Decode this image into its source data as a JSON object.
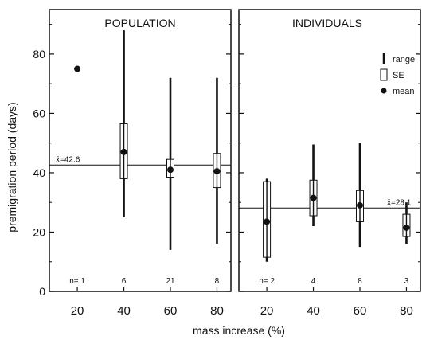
{
  "chart_data": [
    {
      "type": "range-se-mean",
      "title": "POPULATION",
      "xlabel": "mass increase (%)",
      "ylabel": "premigration period (days)",
      "categories": [
        "20",
        "40",
        "60",
        "80"
      ],
      "x": [
        20,
        40,
        60,
        80
      ],
      "xlim": [
        8,
        86
      ],
      "ylim": [
        0,
        95
      ],
      "yticks": [
        0,
        20,
        40,
        60,
        80
      ],
      "y_ticklabels": [
        "0",
        "20",
        "40",
        "60",
        "80"
      ],
      "mean_line": {
        "value": 42.6,
        "label": "x̄=42.6"
      },
      "n_values": [
        "n= 1",
        "6",
        "21",
        "8"
      ],
      "series": [
        {
          "name": "range",
          "low": [
            null,
            25,
            14,
            16
          ],
          "high": [
            null,
            88,
            72,
            72
          ]
        },
        {
          "name": "SE",
          "low": [
            null,
            38,
            38.5,
            35
          ],
          "high": [
            null,
            56.5,
            44.5,
            46.5
          ]
        },
        {
          "name": "mean",
          "values": [
            75,
            47,
            41,
            40.5
          ]
        }
      ]
    },
    {
      "type": "range-se-mean",
      "title": "INDIVIDUALS",
      "xlabel": "",
      "ylabel": "",
      "categories": [
        "20",
        "40",
        "60",
        "80"
      ],
      "x": [
        20,
        40,
        60,
        80
      ],
      "xlim": [
        8,
        86
      ],
      "ylim": [
        0,
        95
      ],
      "mean_line": {
        "value": 28.1,
        "label": "x̄=28.1"
      },
      "n_values": [
        "n= 2",
        "4",
        "8",
        "3"
      ],
      "legend": {
        "position": "right",
        "items": [
          {
            "symbol": "line",
            "label": "range"
          },
          {
            "symbol": "box",
            "label": "SE"
          },
          {
            "symbol": "dot",
            "label": "mean"
          }
        ]
      },
      "series": [
        {
          "name": "range",
          "low": [
            10,
            22,
            15,
            16
          ],
          "high": [
            38,
            49.5,
            50,
            30
          ]
        },
        {
          "name": "SE",
          "low": [
            11.5,
            25.5,
            23.5,
            18.5
          ],
          "high": [
            37,
            37.5,
            34,
            26
          ]
        },
        {
          "name": "mean",
          "values": [
            23.5,
            31.5,
            29,
            21.5
          ]
        }
      ]
    }
  ]
}
